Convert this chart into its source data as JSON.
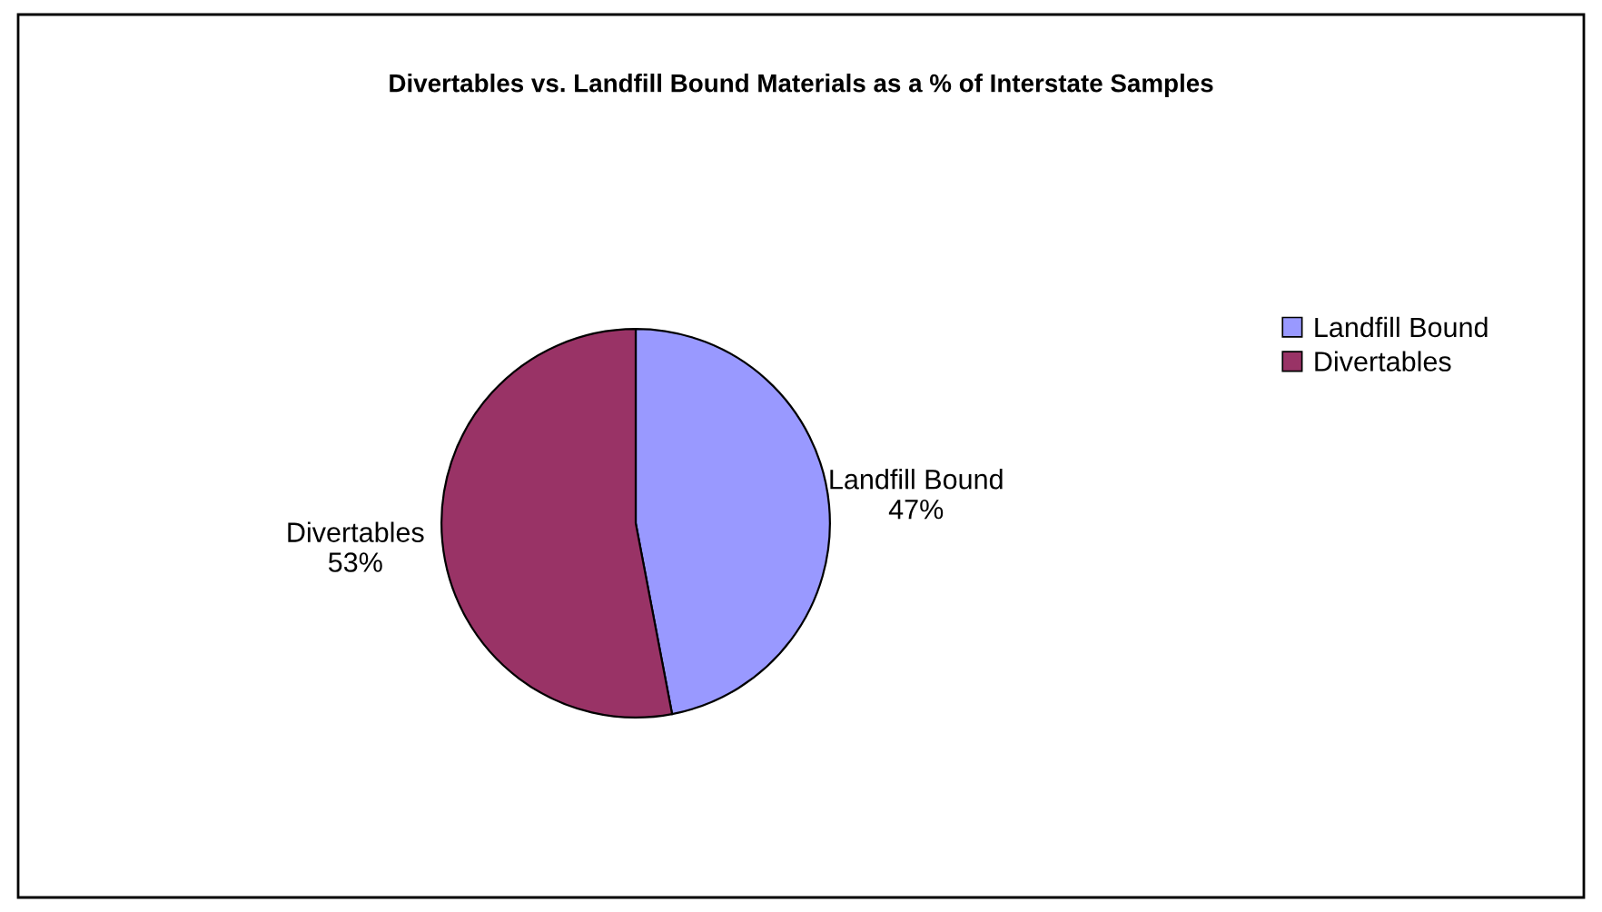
{
  "chart_data": {
    "type": "pie",
    "title": "Divertables vs. Landfill Bound Materials as a % of Interstate Samples",
    "categories": [
      "Landfill Bound",
      "Divertables"
    ],
    "values": [
      47,
      53
    ],
    "colors": [
      "#9999ff",
      "#993366"
    ],
    "value_labels": [
      "47%",
      "53%"
    ],
    "legend": "right"
  }
}
